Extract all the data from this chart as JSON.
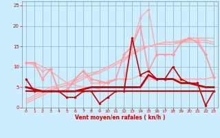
{
  "x": [
    0,
    1,
    2,
    3,
    4,
    5,
    6,
    7,
    8,
    9,
    10,
    11,
    12,
    13,
    14,
    15,
    16,
    17,
    18,
    19,
    20,
    21,
    22,
    23
  ],
  "series": [
    {
      "y": [
        7,
        4,
        4,
        4,
        4,
        2.5,
        2.5,
        4,
        4,
        1,
        2.5,
        4,
        4,
        17,
        8,
        9,
        7,
        7,
        10,
        7,
        6,
        6,
        0.5,
        4
      ],
      "color": "#cc0000",
      "lw": 1.2,
      "marker": "o",
      "ms": 2.0,
      "zorder": 6
    },
    {
      "y": [
        5,
        4.5,
        4,
        4,
        4,
        4,
        4,
        4.5,
        5,
        5,
        5,
        5,
        5,
        5,
        5,
        8,
        7,
        7,
        7,
        6,
        6,
        5.5,
        5,
        5
      ],
      "color": "#cc0000",
      "lw": 2.0,
      "marker": null,
      "ms": 0,
      "zorder": 5
    },
    {
      "y": [
        4,
        4,
        4,
        4,
        4,
        4,
        4,
        4,
        4,
        4,
        4,
        4,
        4,
        4,
        4,
        4,
        4,
        4,
        4,
        4,
        4,
        4,
        4,
        4
      ],
      "color": "#cc0000",
      "lw": 1.5,
      "marker": null,
      "ms": 0,
      "zorder": 5
    },
    {
      "y": [
        11,
        10.5,
        9,
        9.5,
        4,
        4.5,
        7,
        9,
        6,
        6,
        6,
        7,
        7,
        15,
        22,
        24,
        13,
        13,
        13,
        16,
        17,
        17,
        13,
        7.5
      ],
      "color": "#ffaaaa",
      "lw": 1.0,
      "marker": "D",
      "ms": 2.0,
      "zorder": 3
    },
    {
      "y": [
        1,
        2,
        3,
        4,
        5,
        5.5,
        6,
        7,
        8,
        9,
        10,
        11,
        12,
        13,
        14,
        15,
        15.5,
        16,
        16,
        16.5,
        17,
        17,
        17,
        17
      ],
      "color": "#ffaaaa",
      "lw": 1.0,
      "marker": null,
      "ms": 0,
      "zorder": 2
    },
    {
      "y": [
        1.5,
        2.5,
        3.5,
        4.5,
        5,
        5.5,
        6.5,
        7.5,
        8,
        8.5,
        9.5,
        10.5,
        11.5,
        13,
        14.5,
        15,
        15.5,
        16,
        16,
        16,
        16.5,
        16.5,
        16.5,
        16
      ],
      "color": "#ffaaaa",
      "lw": 1.0,
      "marker": null,
      "ms": 0,
      "zorder": 2
    },
    {
      "y": [
        2,
        3,
        4,
        5,
        5.5,
        6,
        7,
        8,
        8.5,
        9,
        10,
        11,
        12,
        13.5,
        15,
        15,
        15.5,
        15.5,
        15.5,
        16,
        16,
        16,
        16,
        15.5
      ],
      "color": "#ffaaaa",
      "lw": 1.0,
      "marker": null,
      "ms": 0,
      "zorder": 2
    },
    {
      "y": [
        11,
        11,
        7,
        9.5,
        4,
        4,
        7,
        9,
        7,
        6.5,
        6,
        7,
        13,
        15,
        20,
        9,
        13,
        13,
        13,
        16,
        17,
        16,
        13,
        7.5
      ],
      "color": "#ff9999",
      "lw": 1.2,
      "marker": "D",
      "ms": 2.0,
      "zorder": 3
    },
    {
      "y": [
        11,
        11,
        10,
        9,
        7.5,
        6,
        5.5,
        5,
        5,
        4.5,
        6.5,
        7,
        7,
        7,
        8,
        7,
        7,
        7,
        7,
        7,
        7,
        7,
        7,
        7.5
      ],
      "color": "#ffaaaa",
      "lw": 1.0,
      "marker": null,
      "ms": 0,
      "zorder": 2
    }
  ],
  "xlabel": "Vent moyen/en rafales ( kn/h )",
  "xlim": [
    -0.5,
    23.5
  ],
  "ylim": [
    0,
    26
  ],
  "yticks": [
    0,
    5,
    10,
    15,
    20,
    25
  ],
  "xticks": [
    0,
    1,
    2,
    3,
    4,
    5,
    6,
    7,
    8,
    9,
    10,
    11,
    12,
    13,
    14,
    15,
    16,
    17,
    18,
    19,
    20,
    21,
    22,
    23
  ],
  "bg_color": "#cceeff",
  "grid_color": "#99bbcc",
  "xlabel_color": "#cc0000",
  "tick_color": "#cc0000",
  "spine_color": "#888888"
}
